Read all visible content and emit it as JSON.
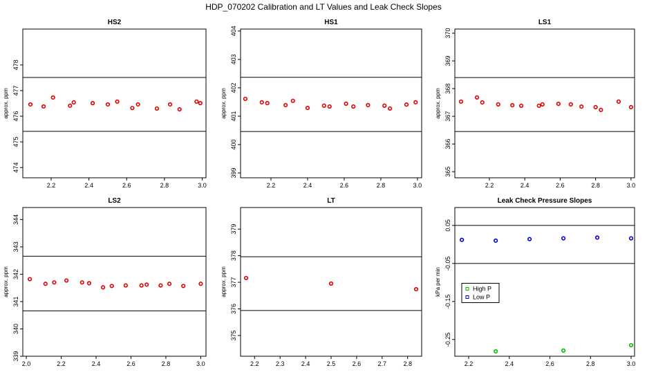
{
  "title": "HDP_070202  Calibration and LT Values and Leak Check Slopes",
  "chart_data": [
    {
      "type": "scatter",
      "title": "HS2",
      "ylabel": "approx. ppm",
      "color": "#e00000",
      "x": [
        2.09,
        2.16,
        2.21,
        2.3,
        2.32,
        2.42,
        2.5,
        2.55,
        2.63,
        2.66,
        2.76,
        2.83,
        2.88,
        2.97,
        2.99
      ],
      "values": [
        476.46,
        476.38,
        476.73,
        476.41,
        476.54,
        476.51,
        476.46,
        476.57,
        476.32,
        476.46,
        476.3,
        476.46,
        476.27,
        476.57,
        476.51
      ],
      "hlines": [
        477.51,
        475.41
      ],
      "xlim": [
        2.05,
        3.02
      ],
      "xticks": [
        2.2,
        2.4,
        2.6,
        2.8,
        {
          "value": 3,
          "label": "3.0"
        }
      ],
      "ylim": [
        473.6,
        479.4
      ],
      "yticks": [
        474,
        475,
        476,
        477,
        478
      ]
    },
    {
      "type": "scatter",
      "title": "HS1",
      "ylabel": "approx. ppm",
      "color": "#e00000",
      "x": [
        2.06,
        2.15,
        2.18,
        2.28,
        2.32,
        2.4,
        2.49,
        2.52,
        2.61,
        2.65,
        2.73,
        2.82,
        2.85,
        2.94,
        2.99
      ],
      "values": [
        401.61,
        401.49,
        401.46,
        401.39,
        401.54,
        401.29,
        401.37,
        401.34,
        401.44,
        401.34,
        401.39,
        401.37,
        401.27,
        401.41,
        401.49
      ],
      "hlines": [
        402.37,
        400.46
      ],
      "xlim": [
        2.034,
        3.023
      ],
      "xticks": [
        2.2,
        2.4,
        2.6,
        2.8,
        {
          "value": 3,
          "label": "3.0"
        }
      ],
      "ylim": [
        398.83,
        404.07
      ],
      "yticks": [
        399,
        400,
        401,
        402,
        403,
        404
      ]
    },
    {
      "type": "scatter",
      "title": "LS1",
      "ylabel": "approx. ppm",
      "color": "#e00000",
      "x": [
        2.04,
        2.13,
        2.16,
        2.25,
        2.33,
        2.38,
        2.48,
        2.5,
        2.59,
        2.66,
        2.72,
        2.8,
        2.83,
        2.93,
        3.0
      ],
      "values": [
        367.53,
        367.68,
        367.5,
        367.43,
        367.4,
        367.38,
        367.38,
        367.43,
        367.45,
        367.43,
        367.35,
        367.33,
        367.23,
        367.53,
        367.33
      ],
      "hlines": [
        368.4,
        366.45
      ],
      "xlim": [
        2.005,
        3.02
      ],
      "xticks": [
        2.2,
        2.4,
        2.6,
        2.8,
        {
          "value": 3,
          "label": "3.0"
        }
      ],
      "ylim": [
        364.78,
        370.15
      ],
      "yticks": [
        365,
        366,
        367,
        368,
        369,
        370
      ]
    },
    {
      "type": "scatter",
      "title": "LS2",
      "ylabel": "approx. ppm",
      "color": "#e00000",
      "x": [
        2.02,
        2.11,
        2.16,
        2.23,
        2.32,
        2.36,
        2.44,
        2.49,
        2.57,
        2.66,
        2.69,
        2.77,
        2.82,
        2.9,
        3.0
      ],
      "values": [
        341.82,
        341.65,
        341.7,
        341.77,
        341.7,
        341.67,
        341.52,
        341.57,
        341.59,
        341.59,
        341.62,
        341.59,
        341.65,
        341.57,
        341.65
      ],
      "hlines": [
        342.66,
        340.66
      ],
      "xlim": [
        1.98,
        3.03
      ],
      "xticks": [
        {
          "value": 2,
          "label": "2.0"
        },
        2.2,
        2.4,
        2.6,
        2.8,
        {
          "value": 3,
          "label": "3.0"
        }
      ],
      "ylim": [
        339,
        344.44
      ],
      "yticks": [
        339,
        340,
        341,
        342,
        343,
        344
      ]
    },
    {
      "type": "scatter",
      "title": "LT",
      "ylabel": "approx. ppm",
      "color": "#e00000",
      "x": [
        2.1667,
        2.5,
        2.8333
      ],
      "values": [
        377.16,
        376.95,
        376.74
      ],
      "hlines": [
        377.96,
        375.94
      ],
      "xlim": [
        2.145,
        2.855
      ],
      "xticks": [
        2.2,
        2.3,
        2.4,
        2.5,
        2.6,
        2.7,
        2.8
      ],
      "ylim": [
        374.22,
        379.81
      ],
      "yticks": [
        375,
        376,
        377,
        378,
        379
      ]
    },
    {
      "type": "scatter",
      "title": "Leak Check Pressure Slopes",
      "ylabel": "kPa per min",
      "legend": "left",
      "series": [
        {
          "name": "High P",
          "color": "#00c000",
          "x": [
            2.3333,
            2.6667,
            3.0
          ],
          "values": [
            -0.281,
            -0.279,
            -0.265
          ]
        },
        {
          "name": "Low P",
          "color": "#0000d0",
          "x": [
            2.1667,
            2.3333,
            2.5,
            2.6667,
            2.8333,
            3.0
          ],
          "values": [
            0.012,
            0.01,
            0.014,
            0.016,
            0.018,
            0.016
          ]
        }
      ],
      "hlines": [
        0.05,
        -0.05
      ],
      "xlim": [
        2.132,
        3.017
      ],
      "xticks": [
        2.2,
        2.4,
        2.6,
        2.8,
        {
          "value": 3,
          "label": "3.0"
        }
      ],
      "ylim": [
        -0.294,
        0.097
      ],
      "yticks": [
        -0.25,
        -0.15,
        -0.05,
        0.05
      ]
    }
  ]
}
